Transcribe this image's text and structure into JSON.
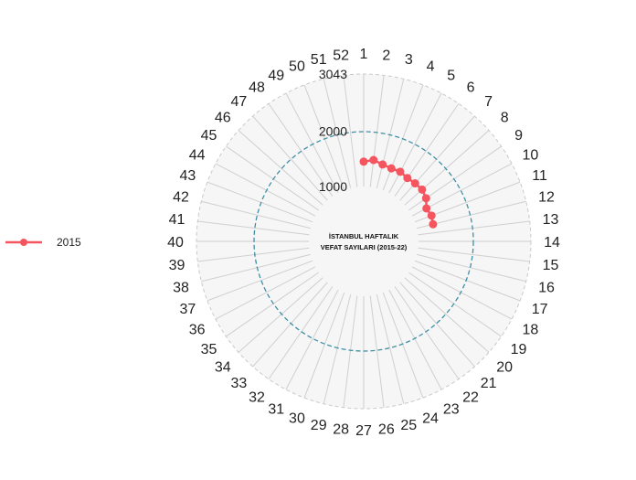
{
  "chart_data": {
    "type": "line",
    "subtype": "polar",
    "title_lines": [
      "İSTANBUL HAFTALIK",
      "VEFAT SAYILARI (2015-22)"
    ],
    "angular_categories": [
      "1",
      "2",
      "3",
      "4",
      "5",
      "6",
      "7",
      "8",
      "9",
      "10",
      "11",
      "12",
      "13",
      "14",
      "15",
      "16",
      "17",
      "18",
      "19",
      "20",
      "21",
      "22",
      "23",
      "24",
      "25",
      "26",
      "27",
      "28",
      "29",
      "30",
      "31",
      "32",
      "33",
      "34",
      "35",
      "36",
      "37",
      "38",
      "39",
      "40",
      "41",
      "42",
      "43",
      "44",
      "45",
      "46",
      "47",
      "48",
      "49",
      "50",
      "51",
      "52"
    ],
    "radial_ticks": [
      1000,
      2000,
      3043
    ],
    "radial_range": [
      0,
      3043
    ],
    "reference_circle": 2000,
    "series": [
      {
        "name": "2015",
        "color": "#f4555f",
        "weeks": [
          1,
          2,
          3,
          4,
          5,
          6,
          7,
          8,
          9,
          10,
          11,
          12
        ],
        "values": [
          1450,
          1490,
          1440,
          1420,
          1430,
          1400,
          1410,
          1420,
          1380,
          1290,
          1320,
          1300
        ]
      }
    ],
    "legend_position": "left",
    "grid": true
  }
}
